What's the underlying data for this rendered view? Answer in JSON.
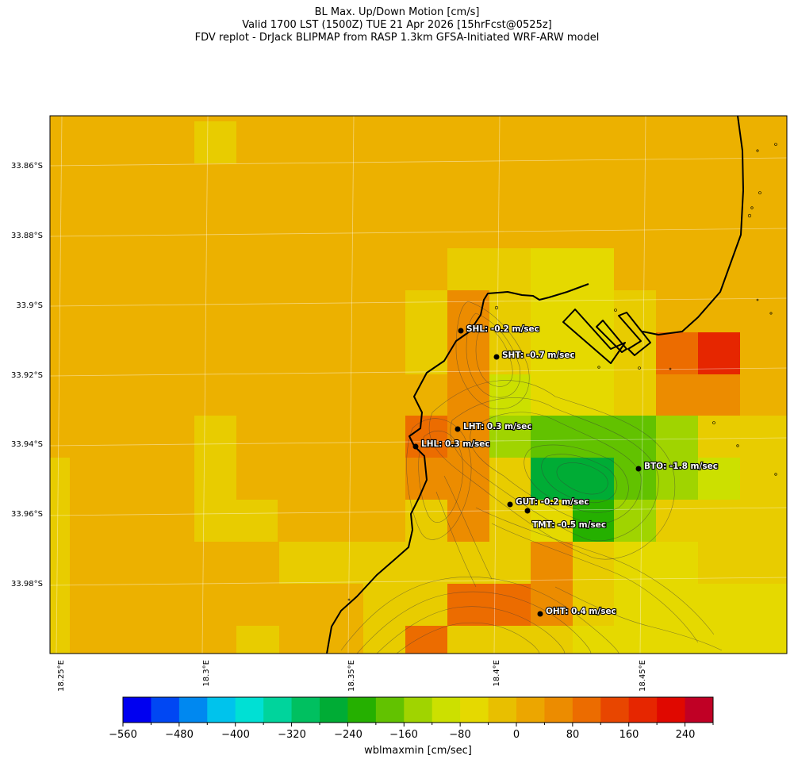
{
  "title": {
    "line1": "BL Max. Up/Down Motion [cm/s]",
    "line2": "Valid 1700 LST (1500Z) TUE 21 Apr 2026 [15hrFcst@0525z]",
    "line3": "FDV replot - DrJack BLIPMAP from RASP 1.3km GFSA-Initiated WRF-ARW model"
  },
  "lat_labels": [
    "33.86°S",
    "33.88°S",
    "33.9°S",
    "33.92°S",
    "33.94°S",
    "33.96°S",
    "33.98°S"
  ],
  "lon_labels": [
    "18.25°E",
    "18.3°E",
    "18.35°E",
    "18.4°E",
    "18.45°E"
  ],
  "stations": [
    {
      "id": "SHL",
      "label": "SHL: -0.2 m/sec"
    },
    {
      "id": "SHT",
      "label": "SHT: -0.7 m/sec"
    },
    {
      "id": "LHT",
      "label": "LHT: 0.3 m/sec"
    },
    {
      "id": "LHL",
      "label": "LHL: 0.3 m/sec"
    },
    {
      "id": "BTO",
      "label": "BTO: -1.8 m/sec"
    },
    {
      "id": "GUT",
      "label": "GUT: -0.2 m/sec"
    },
    {
      "id": "TMT",
      "label": "TMT: -0.5 m/sec"
    },
    {
      "id": "OHT",
      "label": "OHT: 0.4 m/sec"
    }
  ],
  "colorbar": {
    "label": "wblmaxmin [cm/sec]",
    "tick_labels": [
      "−560",
      "−480",
      "−400",
      "−320",
      "−240",
      "−160",
      "−80",
      "0",
      "80",
      "160",
      "240"
    ],
    "colors": [
      "#0000f0",
      "#0047f3",
      "#0088f0",
      "#00c3ec",
      "#00e0d4",
      "#00d49c",
      "#00c060",
      "#00ac35",
      "#25b000",
      "#62c200",
      "#a0d400",
      "#cce000",
      "#e5d900",
      "#e8bf00",
      "#eca600",
      "#ec8c00",
      "#ec6c00",
      "#e84600",
      "#e62600",
      "#e00800",
      "#c00025"
    ]
  },
  "colors": {
    "background_field": "#ecb100",
    "coastline": "#000000",
    "contour": "#3a3a3a"
  }
}
